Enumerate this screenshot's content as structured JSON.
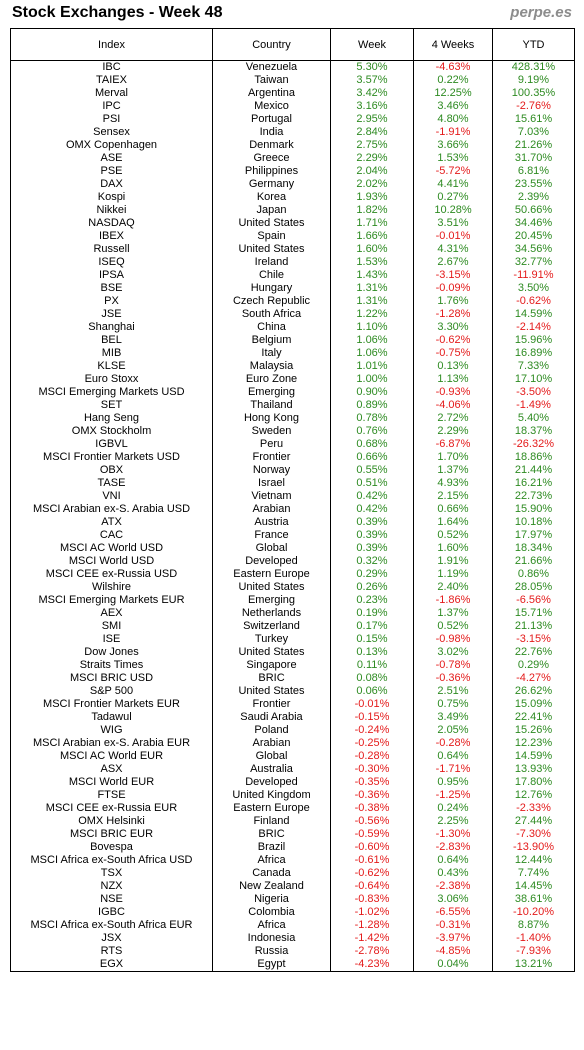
{
  "header": {
    "title": "Stock Exchanges - Week 48",
    "brand": "perpe.es"
  },
  "colors": {
    "positive": "#2e8b22",
    "negative": "#e41b1b",
    "brand": "#8c8c8c"
  },
  "chart_data": {
    "type": "table",
    "title": "Stock Exchanges - Week 48",
    "columns": [
      "Index",
      "Country",
      "Week",
      "4 Weeks",
      "YTD"
    ],
    "rows": [
      [
        "IBC",
        "Venezuela",
        "5.30%",
        "-4.63%",
        "428.31%"
      ],
      [
        "TAIEX",
        "Taiwan",
        "3.57%",
        "0.22%",
        "9.19%"
      ],
      [
        "Merval",
        "Argentina",
        "3.42%",
        "12.25%",
        "100.35%"
      ],
      [
        "IPC",
        "Mexico",
        "3.16%",
        "3.46%",
        "-2.76%"
      ],
      [
        "PSI",
        "Portugal",
        "2.95%",
        "4.80%",
        "15.61%"
      ],
      [
        "Sensex",
        "India",
        "2.84%",
        "-1.91%",
        "7.03%"
      ],
      [
        "OMX Copenhagen",
        "Denmark",
        "2.75%",
        "3.66%",
        "21.26%"
      ],
      [
        "ASE",
        "Greece",
        "2.29%",
        "1.53%",
        "31.70%"
      ],
      [
        "PSE",
        "Philippines",
        "2.04%",
        "-5.72%",
        "6.81%"
      ],
      [
        "DAX",
        "Germany",
        "2.02%",
        "4.41%",
        "23.55%"
      ],
      [
        "Kospi",
        "Korea",
        "1.93%",
        "0.27%",
        "2.39%"
      ],
      [
        "Nikkei",
        "Japan",
        "1.82%",
        "10.28%",
        "50.66%"
      ],
      [
        "NASDAQ",
        "United States",
        "1.71%",
        "3.51%",
        "34.46%"
      ],
      [
        "IBEX",
        "Spain",
        "1.66%",
        "-0.01%",
        "20.45%"
      ],
      [
        "Russell",
        "United States",
        "1.60%",
        "4.31%",
        "34.56%"
      ],
      [
        "ISEQ",
        "Ireland",
        "1.53%",
        "2.67%",
        "32.77%"
      ],
      [
        "IPSA",
        "Chile",
        "1.43%",
        "-3.15%",
        "-11.91%"
      ],
      [
        "BSE",
        "Hungary",
        "1.31%",
        "-0.09%",
        "3.50%"
      ],
      [
        "PX",
        "Czech Republic",
        "1.31%",
        "1.76%",
        "-0.62%"
      ],
      [
        "JSE",
        "South Africa",
        "1.22%",
        "-1.28%",
        "14.59%"
      ],
      [
        "Shanghai",
        "China",
        "1.10%",
        "3.30%",
        "-2.14%"
      ],
      [
        "BEL",
        "Belgium",
        "1.06%",
        "-0.62%",
        "15.96%"
      ],
      [
        "MIB",
        "Italy",
        "1.06%",
        "-0.75%",
        "16.89%"
      ],
      [
        "KLSE",
        "Malaysia",
        "1.01%",
        "0.13%",
        "7.33%"
      ],
      [
        "Euro Stoxx",
        "Euro Zone",
        "1.00%",
        "1.13%",
        "17.10%"
      ],
      [
        "MSCI Emerging Markets USD",
        "Emerging",
        "0.90%",
        "-0.93%",
        "-3.50%"
      ],
      [
        "SET",
        "Thailand",
        "0.89%",
        "-4.06%",
        "-1.49%"
      ],
      [
        "Hang Seng",
        "Hong Kong",
        "0.78%",
        "2.72%",
        "5.40%"
      ],
      [
        "OMX Stockholm",
        "Sweden",
        "0.76%",
        "2.29%",
        "18.37%"
      ],
      [
        "IGBVL",
        "Peru",
        "0.68%",
        "-6.87%",
        "-26.32%"
      ],
      [
        "MSCI Frontier Markets USD",
        "Frontier",
        "0.66%",
        "1.70%",
        "18.86%"
      ],
      [
        "OBX",
        "Norway",
        "0.55%",
        "1.37%",
        "21.44%"
      ],
      [
        "TASE",
        "Israel",
        "0.51%",
        "4.93%",
        "16.21%"
      ],
      [
        "VNI",
        "Vietnam",
        "0.42%",
        "2.15%",
        "22.73%"
      ],
      [
        "MSCI Arabian ex-S. Arabia USD",
        "Arabian",
        "0.42%",
        "0.66%",
        "15.90%"
      ],
      [
        "ATX",
        "Austria",
        "0.39%",
        "1.64%",
        "10.18%"
      ],
      [
        "CAC",
        "France",
        "0.39%",
        "0.52%",
        "17.97%"
      ],
      [
        "MSCI AC World USD",
        "Global",
        "0.39%",
        "1.60%",
        "18.34%"
      ],
      [
        "MSCI World USD",
        "Developed",
        "0.32%",
        "1.91%",
        "21.66%"
      ],
      [
        "MSCI CEE ex-Russia USD",
        "Eastern Europe",
        "0.29%",
        "1.19%",
        "0.86%"
      ],
      [
        "Wilshire",
        "United States",
        "0.26%",
        "2.40%",
        "28.05%"
      ],
      [
        "MSCI Emerging Markets EUR",
        "Emerging",
        "0.23%",
        "-1.86%",
        "-6.56%"
      ],
      [
        "AEX",
        "Netherlands",
        "0.19%",
        "1.37%",
        "15.71%"
      ],
      [
        "SMI",
        "Switzerland",
        "0.17%",
        "0.52%",
        "21.13%"
      ],
      [
        "ISE",
        "Turkey",
        "0.15%",
        "-0.98%",
        "-3.15%"
      ],
      [
        "Dow Jones",
        "United States",
        "0.13%",
        "3.02%",
        "22.76%"
      ],
      [
        "Straits Times",
        "Singapore",
        "0.11%",
        "-0.78%",
        "0.29%"
      ],
      [
        "MSCI BRIC USD",
        "BRIC",
        "0.08%",
        "-0.36%",
        "-4.27%"
      ],
      [
        "S&P 500",
        "United States",
        "0.06%",
        "2.51%",
        "26.62%"
      ],
      [
        "MSCI Frontier Markets EUR",
        "Frontier",
        "-0.01%",
        "0.75%",
        "15.09%"
      ],
      [
        "Tadawul",
        "Saudi Arabia",
        "-0.15%",
        "3.49%",
        "22.41%"
      ],
      [
        "WIG",
        "Poland",
        "-0.24%",
        "2.05%",
        "15.26%"
      ],
      [
        "MSCI Arabian ex-S. Arabia EUR",
        "Arabian",
        "-0.25%",
        "-0.28%",
        "12.23%"
      ],
      [
        "MSCI AC World EUR",
        "Global",
        "-0.28%",
        "0.64%",
        "14.59%"
      ],
      [
        "ASX",
        "Australia",
        "-0.30%",
        "-1.71%",
        "13.93%"
      ],
      [
        "MSCI World EUR",
        "Developed",
        "-0.35%",
        "0.95%",
        "17.80%"
      ],
      [
        "FTSE",
        "United Kingdom",
        "-0.36%",
        "-1.25%",
        "12.76%"
      ],
      [
        "MSCI CEE ex-Russia EUR",
        "Eastern Europe",
        "-0.38%",
        "0.24%",
        "-2.33%"
      ],
      [
        "OMX Helsinki",
        "Finland",
        "-0.56%",
        "2.25%",
        "27.44%"
      ],
      [
        "MSCI BRIC EUR",
        "BRIC",
        "-0.59%",
        "-1.30%",
        "-7.30%"
      ],
      [
        "Bovespa",
        "Brazil",
        "-0.60%",
        "-2.83%",
        "-13.90%"
      ],
      [
        "MSCI Africa ex-South Africa USD",
        "Africa",
        "-0.61%",
        "0.64%",
        "12.44%"
      ],
      [
        "TSX",
        "Canada",
        "-0.62%",
        "0.43%",
        "7.74%"
      ],
      [
        "NZX",
        "New Zealand",
        "-0.64%",
        "-2.38%",
        "14.45%"
      ],
      [
        "NSE",
        "Nigeria",
        "-0.83%",
        "3.06%",
        "38.61%"
      ],
      [
        "IGBC",
        "Colombia",
        "-1.02%",
        "-6.55%",
        "-10.20%"
      ],
      [
        "MSCI Africa ex-South Africa EUR",
        "Africa",
        "-1.28%",
        "-0.31%",
        "8.87%"
      ],
      [
        "JSX",
        "Indonesia",
        "-1.42%",
        "-3.97%",
        "-1.40%"
      ],
      [
        "RTS",
        "Russia",
        "-2.78%",
        "-4.85%",
        "-7.93%"
      ],
      [
        "EGX",
        "Egypt",
        "-4.23%",
        "0.04%",
        "13.21%"
      ]
    ]
  }
}
